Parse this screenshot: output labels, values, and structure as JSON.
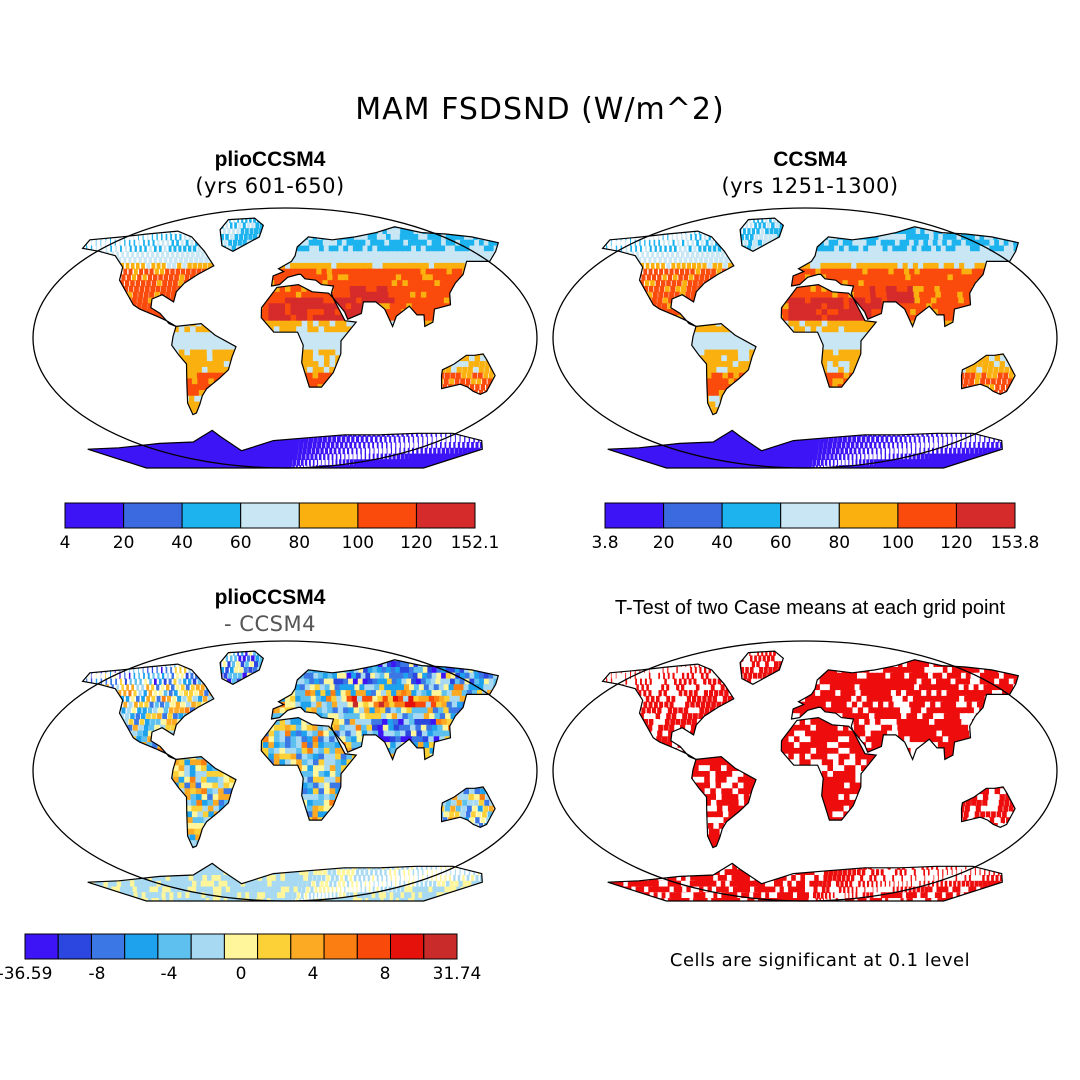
{
  "title": "MAM FSDSND (W/m^2)",
  "colors": {
    "absolute": [
      "#3d14f5",
      "#3b6ae0",
      "#1cb3ee",
      "#c8e6f4",
      "#fab10f",
      "#fa4a0c",
      "#d62b2b"
    ],
    "difference": [
      "#3d14f5",
      "#2c47e0",
      "#3b78e6",
      "#1fa2ee",
      "#5dc0ee",
      "#a7daf2",
      "#fff59a",
      "#fcd037",
      "#fcaa24",
      "#fb7e12",
      "#f84a0a",
      "#e5110b",
      "#c92a2a"
    ],
    "significant": "#ee0d0d",
    "ocean": "#ffffff",
    "coast": "#000000"
  },
  "panels": [
    {
      "title": "plioCCSM4",
      "subtitle": "(yrs 601-650)",
      "colorbar": {
        "labels": [
          "4",
          "20",
          "40",
          "60",
          "80",
          "100",
          "120",
          "152.1"
        ]
      }
    },
    {
      "title": "CCSM4",
      "subtitle": "(yrs 1251-1300)",
      "colorbar": {
        "labels": [
          "3.8",
          "20",
          "40",
          "60",
          "80",
          "100",
          "120",
          "153.8"
        ]
      }
    },
    {
      "title": "plioCCSM4",
      "subtitle": "- CCSM4",
      "colorbar": {
        "labels": [
          "-36.59",
          "-8",
          "-4",
          "0",
          "4",
          "8",
          "31.74"
        ]
      }
    },
    {
      "title": "T-Test of two Case means at each grid point",
      "note": "Cells are significant at 0.1 level"
    }
  ]
}
